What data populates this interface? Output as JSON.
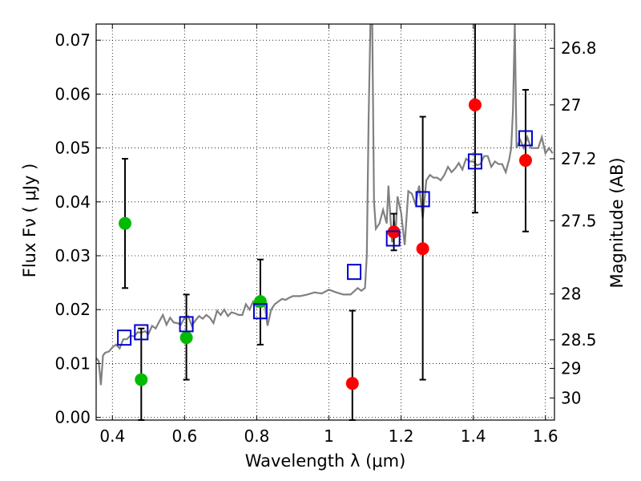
{
  "chart_data": {
    "type": "scatter",
    "xlabel": "Wavelength  λ (μm)",
    "ylabel": "Flux  Fν  ( μJy )",
    "y2label": "Magnitude (AB)",
    "xlim": [
      0.355,
      1.625
    ],
    "ylim": [
      -0.0005,
      0.073
    ],
    "grid": true,
    "x_ticks": [
      0.4,
      0.6,
      0.8,
      1.0,
      1.2,
      1.4,
      1.6
    ],
    "x_tick_labels": [
      "0.4",
      "0.6",
      "0.8",
      "1",
      "1.2",
      "1.4",
      "1.6"
    ],
    "y_ticks": [
      0.0,
      0.01,
      0.02,
      0.03,
      0.04,
      0.05,
      0.06,
      0.07
    ],
    "y_tick_labels": [
      "0.00",
      "0.01",
      "0.02",
      "0.03",
      "0.04",
      "0.05",
      "0.06",
      "0.07"
    ],
    "mag_ticks": [
      {
        "label": "26.8",
        "flux": 0.0685
      },
      {
        "label": "27",
        "flux": 0.058
      },
      {
        "label": "27.2",
        "flux": 0.048
      },
      {
        "label": "27.5",
        "flux": 0.0365
      },
      {
        "label": "28",
        "flux": 0.0229
      },
      {
        "label": "28.5",
        "flux": 0.0144
      },
      {
        "label": "29",
        "flux": 0.0091
      },
      {
        "label": "30",
        "flux": 0.0036
      }
    ],
    "colors": {
      "green": "#00bb00",
      "red": "#ff0000",
      "blue": "#0000cc",
      "sed": "#808080"
    },
    "series": [
      {
        "name": "green-detections",
        "marker": "circle",
        "color": "#00bb00",
        "points": [
          {
            "x": 0.435,
            "y": 0.036,
            "lo": 0.024,
            "hi": 0.048
          },
          {
            "x": 0.48,
            "y": 0.007,
            "lo": -0.0005,
            "hi": 0.0165
          },
          {
            "x": 0.605,
            "y": 0.0148,
            "lo": 0.007,
            "hi": 0.0228
          },
          {
            "x": 0.81,
            "y": 0.0215,
            "lo": 0.0135,
            "hi": 0.0293
          }
        ]
      },
      {
        "name": "red-detections",
        "marker": "circle",
        "color": "#ff0000",
        "points": [
          {
            "x": 1.065,
            "y": 0.0063,
            "lo": -0.0005,
            "hi": 0.0198
          },
          {
            "x": 1.18,
            "y": 0.0344,
            "lo": 0.031,
            "hi": 0.0378
          },
          {
            "x": 1.26,
            "y": 0.0313,
            "lo": 0.007,
            "hi": 0.0558
          },
          {
            "x": 1.405,
            "y": 0.058,
            "lo": 0.038,
            "hi": 0.0735
          },
          {
            "x": 1.545,
            "y": 0.0477,
            "lo": 0.0345,
            "hi": 0.0608
          }
        ]
      },
      {
        "name": "model-photometry",
        "marker": "square",
        "color": "#0000cc",
        "points": [
          {
            "x": 0.433,
            "y": 0.0148
          },
          {
            "x": 0.48,
            "y": 0.0158
          },
          {
            "x": 0.605,
            "y": 0.0173
          },
          {
            "x": 0.81,
            "y": 0.0197
          },
          {
            "x": 1.07,
            "y": 0.027
          },
          {
            "x": 1.178,
            "y": 0.0332
          },
          {
            "x": 1.26,
            "y": 0.0405
          },
          {
            "x": 1.405,
            "y": 0.0475
          },
          {
            "x": 1.545,
            "y": 0.0518
          }
        ]
      }
    ],
    "sed_line": {
      "name": "model-spectrum",
      "x": [
        0.355,
        0.362,
        0.368,
        0.374,
        0.38,
        0.39,
        0.4,
        0.41,
        0.42,
        0.43,
        0.44,
        0.45,
        0.46,
        0.47,
        0.48,
        0.49,
        0.5,
        0.51,
        0.52,
        0.53,
        0.54,
        0.55,
        0.56,
        0.57,
        0.58,
        0.59,
        0.6,
        0.61,
        0.62,
        0.63,
        0.64,
        0.65,
        0.66,
        0.67,
        0.68,
        0.69,
        0.7,
        0.71,
        0.72,
        0.73,
        0.74,
        0.75,
        0.76,
        0.77,
        0.78,
        0.79,
        0.8,
        0.81,
        0.82,
        0.83,
        0.84,
        0.85,
        0.86,
        0.87,
        0.88,
        0.89,
        0.9,
        0.92,
        0.94,
        0.96,
        0.98,
        1.0,
        1.02,
        1.04,
        1.06,
        1.08,
        1.09,
        1.1,
        1.105,
        1.11,
        1.115,
        1.12,
        1.125,
        1.13,
        1.14,
        1.15,
        1.16,
        1.165,
        1.17,
        1.175,
        1.18,
        1.185,
        1.19,
        1.2,
        1.21,
        1.22,
        1.23,
        1.24,
        1.25,
        1.26,
        1.27,
        1.28,
        1.29,
        1.3,
        1.31,
        1.32,
        1.33,
        1.34,
        1.35,
        1.36,
        1.37,
        1.38,
        1.39,
        1.4,
        1.41,
        1.42,
        1.43,
        1.44,
        1.45,
        1.46,
        1.47,
        1.48,
        1.49,
        1.5,
        1.505,
        1.51,
        1.515,
        1.52,
        1.53,
        1.54,
        1.55,
        1.56,
        1.57,
        1.58,
        1.59,
        1.6,
        1.61,
        1.62
      ],
      "y": [
        0.011,
        0.0105,
        0.006,
        0.0115,
        0.012,
        0.0122,
        0.013,
        0.0135,
        0.0128,
        0.0145,
        0.0145,
        0.0152,
        0.015,
        0.0158,
        0.0157,
        0.016,
        0.0155,
        0.017,
        0.0165,
        0.0178,
        0.019,
        0.0172,
        0.0185,
        0.0176,
        0.0175,
        0.0172,
        0.0185,
        0.0188,
        0.017,
        0.018,
        0.0188,
        0.0183,
        0.019,
        0.0185,
        0.0175,
        0.0198,
        0.019,
        0.02,
        0.0188,
        0.0195,
        0.0193,
        0.019,
        0.019,
        0.021,
        0.02,
        0.0215,
        0.0205,
        0.0215,
        0.022,
        0.017,
        0.02,
        0.021,
        0.0215,
        0.022,
        0.0218,
        0.0222,
        0.0225,
        0.0225,
        0.0228,
        0.0232,
        0.023,
        0.0237,
        0.0232,
        0.0228,
        0.0228,
        0.024,
        0.0235,
        0.024,
        0.03,
        0.055,
        0.073,
        0.073,
        0.04,
        0.035,
        0.036,
        0.0385,
        0.036,
        0.043,
        0.0375,
        0.0325,
        0.0365,
        0.0345,
        0.041,
        0.038,
        0.032,
        0.042,
        0.0415,
        0.0395,
        0.043,
        0.037,
        0.044,
        0.045,
        0.0445,
        0.0445,
        0.044,
        0.045,
        0.0465,
        0.0455,
        0.0462,
        0.0472,
        0.046,
        0.048,
        0.0475,
        0.0475,
        0.0468,
        0.047,
        0.0485,
        0.0485,
        0.0465,
        0.0475,
        0.047,
        0.047,
        0.0455,
        0.048,
        0.05,
        0.057,
        0.073,
        0.05,
        0.0515,
        0.05,
        0.052,
        0.05,
        0.05,
        0.05,
        0.052,
        0.049,
        0.05,
        0.049
      ]
    }
  }
}
